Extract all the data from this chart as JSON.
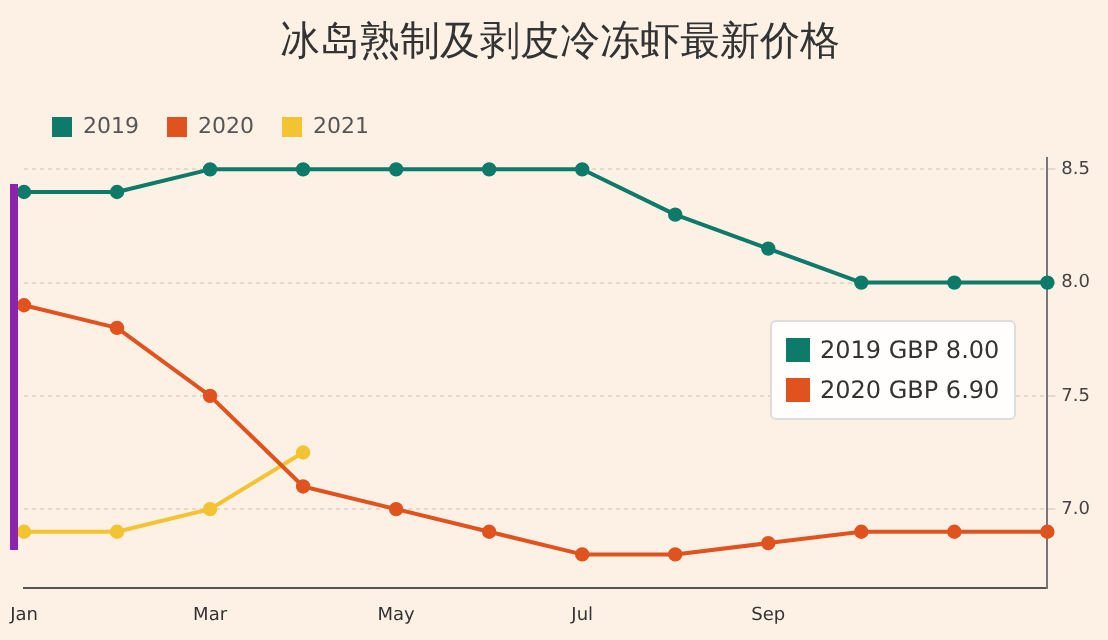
{
  "chart_data": {
    "type": "line",
    "title": "冰岛熟制及剥皮冷冻虾最新价格",
    "categories": [
      "Jan",
      null,
      "Mar",
      null,
      "May",
      null,
      "Jul",
      null,
      "Sep",
      null,
      null,
      null
    ],
    "series": [
      {
        "name": "2019",
        "color": "#0e7a69",
        "values": [
          8.4,
          8.4,
          8.5,
          8.5,
          8.5,
          8.5,
          8.5,
          8.3,
          8.15,
          8.0,
          8.0,
          8.0
        ]
      },
      {
        "name": "2020",
        "color": "#e0531e",
        "values": [
          7.9,
          7.8,
          7.5,
          7.1,
          7.0,
          6.9,
          6.8,
          6.8,
          6.85,
          6.9,
          6.9,
          6.9
        ]
      },
      {
        "name": "2021",
        "color": "#f3c332",
        "values": [
          6.9,
          6.9,
          7.0,
          7.25,
          null,
          null,
          null,
          null,
          null,
          null,
          null,
          null
        ]
      }
    ],
    "ylim": [
      6.65,
      8.55
    ],
    "yticks": [
      {
        "value": 7,
        "label": "7.0"
      },
      {
        "value": 7.5,
        "label": "7.5"
      },
      {
        "value": 8,
        "label": "8.0"
      },
      {
        "value": 8.5,
        "label": "8.5"
      }
    ],
    "grid": "y",
    "legend": "top left",
    "marker": "circle",
    "line_style": "solid",
    "annotations": [
      "2019 GBP 8.00",
      "2020 GBP 6.90"
    ]
  }
}
